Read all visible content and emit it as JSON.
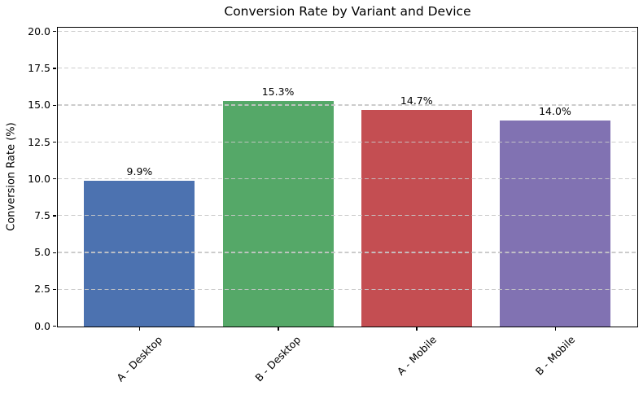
{
  "chart_data": {
    "type": "bar",
    "title": "Conversion Rate by Variant and Device",
    "categories": [
      "A - Desktop",
      "B - Desktop",
      "A - Mobile",
      "B - Mobile"
    ],
    "values": [
      9.9,
      15.3,
      14.7,
      14.0
    ],
    "bar_labels": [
      "9.9%",
      "15.3%",
      "14.7%",
      "14.0%"
    ],
    "bar_colors": [
      "#4C72B0",
      "#55A868",
      "#C44E52",
      "#8172B2"
    ],
    "xlabel": "",
    "ylabel": "Conversion Rate (%)",
    "ylim": [
      0,
      20.25
    ],
    "yticks": [
      0,
      2.5,
      5,
      7.5,
      10,
      12.5,
      15,
      17.5,
      20
    ],
    "ytick_labels": [
      "0.0",
      "2.5",
      "5.0",
      "7.5",
      "10.0",
      "12.5",
      "15.0",
      "17.5",
      "20.0"
    ],
    "grid": "horizontal-dashed",
    "legend": "none"
  }
}
